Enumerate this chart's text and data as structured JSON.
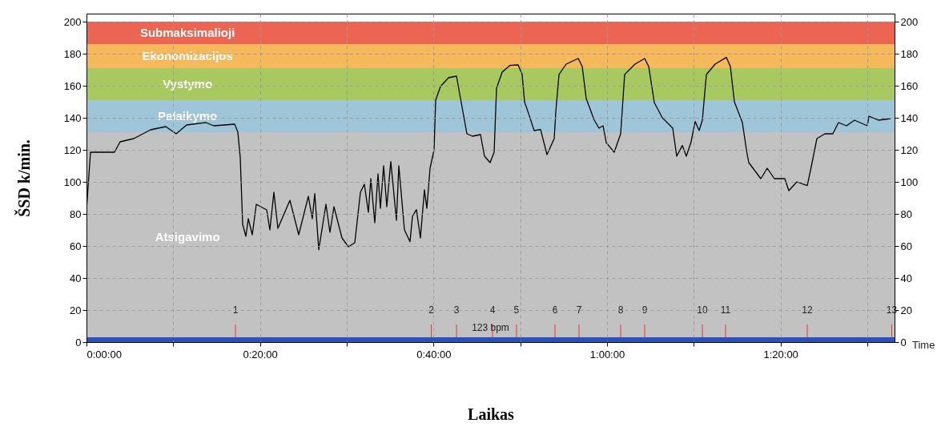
{
  "chart_data": {
    "type": "line",
    "xlabel": "Laikas",
    "ylabel": "ŠSD k/min.",
    "x": [
      0.0005,
      0.0077,
      0.0538,
      0.0646,
      0.0908,
      0.1231,
      0.1523,
      0.1723,
      0.1923,
      0.2292,
      0.2446,
      0.2846,
      0.2908,
      0.2954,
      0.3,
      0.3062,
      0.3108,
      0.3185,
      0.3262,
      0.3462,
      0.3523,
      0.36,
      0.3677,
      0.3908,
      0.4077,
      0.4262,
      0.4338,
      0.4385,
      0.4462,
      0.46,
      0.4677,
      0.4754,
      0.4908,
      0.5031,
      0.5154,
      0.5262,
      0.5338,
      0.5415,
      0.5462,
      0.5538,
      0.56,
      0.5646,
      0.5708,
      0.5769,
      0.5846,
      0.5954,
      0.6,
      0.6108,
      0.6215,
      0.6262,
      0.6338,
      0.6415,
      0.6492,
      0.6538,
      0.66,
      0.6677,
      0.6708,
      0.68,
      0.6954,
      0.7108,
      0.7185,
      0.7308,
      0.7415,
      0.7569,
      0.7646,
      0.7754,
      0.7831,
      0.7877,
      0.7985,
      0.8138,
      0.8292,
      0.8369,
      0.8415,
      0.8492,
      0.86,
      0.8723,
      0.8846,
      0.8985,
      0.9015,
      0.9077,
      0.9215,
      0.9446,
      0.9523,
      0.96,
      0.9754,
      0.9846,
      0.9923,
      0.9985,
      1.0138,
      1.0262,
      1.0338,
      1.0538,
      1.0723,
      1.08,
      1.0908,
      1.1062,
      1.1262,
      1.1338,
      1.1446,
      1.1523,
      1.1615,
      1.1692,
      1.1769,
      1.1831,
      1.1908,
      1.2077,
      1.2292,
      1.2369,
      1.2446,
      1.26,
      1.2677,
      1.2723,
      1.2954,
      1.3077,
      1.3215,
      1.3415,
      1.3492,
      1.3646,
      1.3846,
      1.3908,
      1.4031,
      1.4185,
      1.4338,
      1.4446,
      1.46,
      1.4754,
      1.5,
      1.5031,
      1.5215,
      1.5446
    ],
    "series": [
      {
        "color": "#000000",
        "values": [
          85,
          118.5,
          118.5,
          125,
          127,
          132.5,
          134.5,
          130,
          135.5,
          137,
          135,
          136,
          131,
          115,
          73.5,
          66,
          77,
          67,
          86,
          82.5,
          70,
          93.5,
          71,
          88.5,
          67,
          91,
          77,
          92.7,
          57.7,
          86,
          68.5,
          84.5,
          65,
          59.5,
          62,
          93.5,
          98.5,
          81,
          102,
          74.5,
          105,
          83.5,
          110,
          84.5,
          112.7,
          76,
          110,
          70,
          62.7,
          78.5,
          82.7,
          65,
          95,
          83.5,
          108.5,
          120,
          151,
          159.5,
          165,
          166,
          152,
          130,
          128.5,
          129.5,
          116,
          112,
          118.5,
          158.5,
          168.5,
          172.7,
          173,
          167,
          150,
          142.7,
          132,
          132.7,
          117,
          127,
          143.5,
          167,
          173.5,
          177,
          172,
          152,
          138.5,
          133.5,
          135,
          124.5,
          118.5,
          130,
          167,
          173.5,
          177,
          172,
          149.5,
          140,
          133.5,
          116,
          122.7,
          116,
          125,
          137.7,
          132,
          138.5,
          167,
          173.5,
          177.7,
          172,
          150,
          137,
          120,
          112,
          102,
          108.5,
          102,
          102,
          94.5,
          100,
          97.7,
          107,
          127,
          130,
          130,
          137,
          135,
          138.5,
          135,
          141,
          138.5,
          139.5
        ]
      }
    ],
    "xlim": [
      0,
      1.5523
    ],
    "xticks": [
      {
        "value": 0,
        "label": "0:00:00"
      },
      {
        "value": 0.1667,
        "label": null
      },
      {
        "value": 0.3333,
        "label": "0:20:00"
      },
      {
        "value": 0.5,
        "label": null
      },
      {
        "value": 0.6667,
        "label": "0:40:00"
      },
      {
        "value": 0.8333,
        "label": null
      },
      {
        "value": 1,
        "label": "1:00:00"
      },
      {
        "value": 1.1667,
        "label": null
      },
      {
        "value": 1.3333,
        "label": "1:20:00"
      },
      {
        "value": 1.5,
        "label": null
      }
    ],
    "ylim": [
      0,
      205
    ],
    "yticks": [
      0,
      20,
      40,
      60,
      80,
      100,
      120,
      140,
      160,
      180,
      200
    ],
    "y2lim": [
      0,
      205
    ],
    "y2ticks": [
      0,
      20,
      40,
      60,
      80,
      100,
      120,
      140,
      160,
      180,
      200
    ],
    "bands": [
      {
        "axis": "y",
        "from": 0,
        "to": 131,
        "label": "Atsigavimo",
        "color": "#c2c2c2"
      },
      {
        "axis": "y",
        "from": 131,
        "to": 151,
        "label": "Palaikymo",
        "color": "#9ec6d8"
      },
      {
        "axis": "y",
        "from": 151,
        "to": 171,
        "label": "Vystymo",
        "color": "#a8c95f"
      },
      {
        "axis": "y",
        "from": 171,
        "to": 186,
        "label": "Ekonomizacijos",
        "color": "#f5b85a"
      },
      {
        "axis": "y",
        "from": 186,
        "to": 200,
        "label": "Submaksimalioji",
        "color": "#ec6552"
      },
      {
        "axis": "y",
        "from": 0,
        "to": 3,
        "color": "#2a52be"
      }
    ],
    "annotations": [
      {
        "text": "1",
        "x": 0.2862
      },
      {
        "text": "2",
        "x": 0.6623
      },
      {
        "text": "3",
        "x": 0.7108
      },
      {
        "text": "4",
        "x": 0.78
      },
      {
        "text": "5",
        "x": 0.8261
      },
      {
        "text": "6",
        "x": 0.9
      },
      {
        "text": "7",
        "x": 0.9462
      },
      {
        "text": "8",
        "x": 1.0262
      },
      {
        "text": "9",
        "x": 1.0723
      },
      {
        "text": "10",
        "x": 1.1831
      },
      {
        "text": "11",
        "x": 1.2277
      },
      {
        "text": "12",
        "x": 1.3846
      },
      {
        "text": "13",
        "x": 1.5469
      },
      "123 bpm",
      "Time"
    ],
    "grid": true,
    "line_style": "solid"
  }
}
